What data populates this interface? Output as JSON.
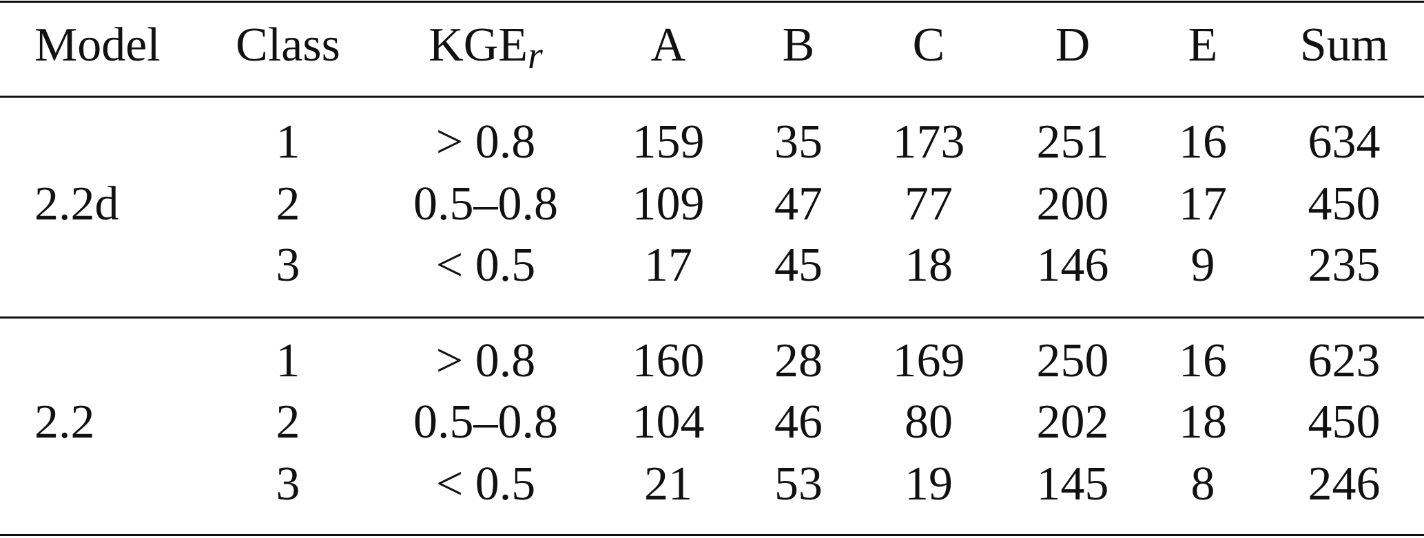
{
  "table": {
    "columns": [
      "Model",
      "Class",
      "KGE",
      "A",
      "B",
      "C",
      "D",
      "E",
      "Sum"
    ],
    "kge_subscript": "r",
    "groups": [
      {
        "model": "2.2d",
        "rows": [
          [
            1,
            "> 0.8",
            159,
            35,
            173,
            251,
            16,
            634
          ],
          [
            2,
            "0.5–0.8",
            109,
            47,
            77,
            200,
            17,
            450
          ],
          [
            3,
            "< 0.5",
            17,
            45,
            18,
            146,
            9,
            235
          ]
        ]
      },
      {
        "model": "2.2",
        "rows": [
          [
            1,
            "> 0.8",
            160,
            28,
            169,
            250,
            16,
            623
          ],
          [
            2,
            "0.5–0.8",
            104,
            46,
            80,
            202,
            18,
            450
          ],
          [
            3,
            "< 0.5",
            21,
            53,
            19,
            145,
            8,
            246
          ]
        ]
      }
    ]
  }
}
